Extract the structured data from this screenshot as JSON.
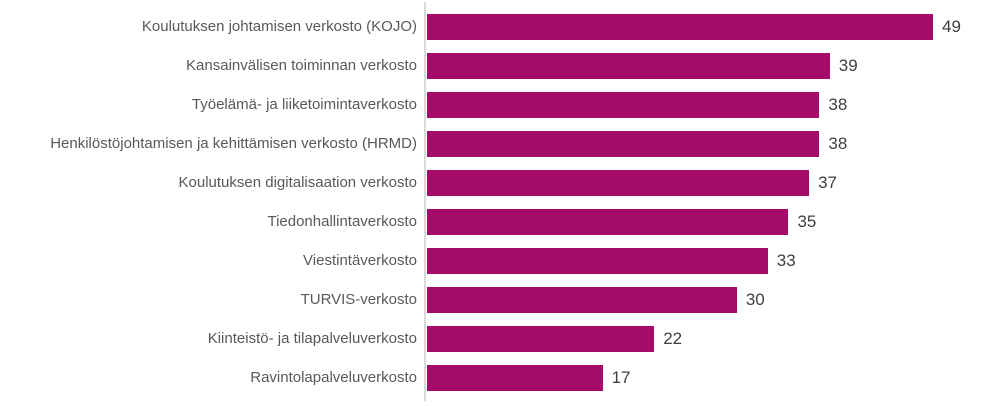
{
  "chart_data": {
    "type": "bar",
    "orientation": "horizontal",
    "title": "",
    "xlabel": "",
    "ylabel": "",
    "categories": [
      "Koulutuksen johtamisen verkosto (KOJO)",
      "Kansainvälisen toiminnan verkosto",
      "Työelämä- ja liiketoimintaverkosto",
      "Henkilöstöjohtamisen ja kehittämisen verkosto (HRMD)",
      "Koulutuksen digitalisaation verkosto",
      "Tiedonhallintaverkosto",
      "Viestintäverkosto",
      "TURVIS-verkosto",
      "Kiinteistö- ja tilapalveluverkosto",
      "Ravintolapalveluverkosto"
    ],
    "values": [
      49,
      39,
      38,
      38,
      37,
      35,
      33,
      30,
      22,
      17
    ],
    "value_labels_shown": true,
    "xlim": [
      0,
      55
    ],
    "grid": false,
    "legend": false,
    "bar_color": "#a50b6b",
    "category_label_color": "#595959",
    "value_label_color": "#404040",
    "axis_line_color": "#d9d9d9",
    "background_color": "#ffffff"
  }
}
